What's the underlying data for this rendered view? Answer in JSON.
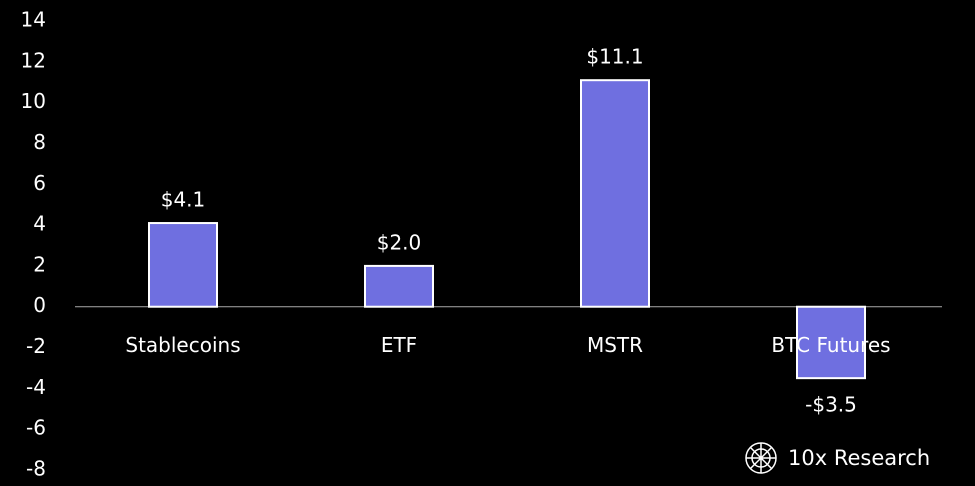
{
  "chart_data": {
    "type": "bar",
    "categories": [
      "Stablecoins",
      "ETF",
      "MSTR",
      "BTC Futures"
    ],
    "values": [
      4.1,
      2.0,
      11.1,
      -3.5
    ],
    "value_labels": [
      "$4.1",
      "$2.0",
      "$11.1",
      "-$3.5"
    ],
    "color": "#6f6fe0",
    "ylim": [
      -8,
      14
    ],
    "yticks": [
      -8,
      -6,
      -4,
      -2,
      0,
      2,
      4,
      6,
      8,
      10,
      12,
      14
    ],
    "watermark": "10x Research"
  }
}
